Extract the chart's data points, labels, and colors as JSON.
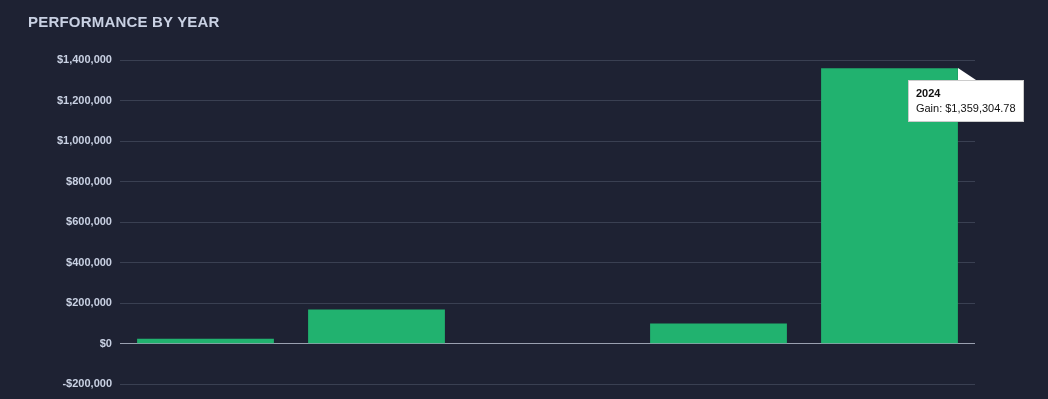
{
  "chart_data": {
    "type": "bar",
    "title": "PERFORMANCE BY YEAR",
    "categories": [
      null,
      null,
      null,
      null,
      null
    ],
    "values": [
      25000,
      170000,
      0,
      100000,
      1359304.78
    ],
    "color": "#21b26f",
    "ylim": [
      -200000,
      1400000
    ],
    "yticks": [
      {
        "value": -200000,
        "label": "-$200,000"
      },
      {
        "value": 0,
        "label": "$0"
      },
      {
        "value": 200000,
        "label": "$200,000"
      },
      {
        "value": 400000,
        "label": "$400,000"
      },
      {
        "value": 600000,
        "label": "$600,000"
      },
      {
        "value": 800000,
        "label": "$800,000"
      },
      {
        "value": 1000000,
        "label": "$1,000,000"
      },
      {
        "value": 1200000,
        "label": "$1,200,000"
      },
      {
        "value": 1400000,
        "label": "$1,400,000"
      }
    ],
    "grid": "y",
    "legend": false,
    "annotations": [
      "2024\nGain: $1,359,304.78"
    ]
  }
}
